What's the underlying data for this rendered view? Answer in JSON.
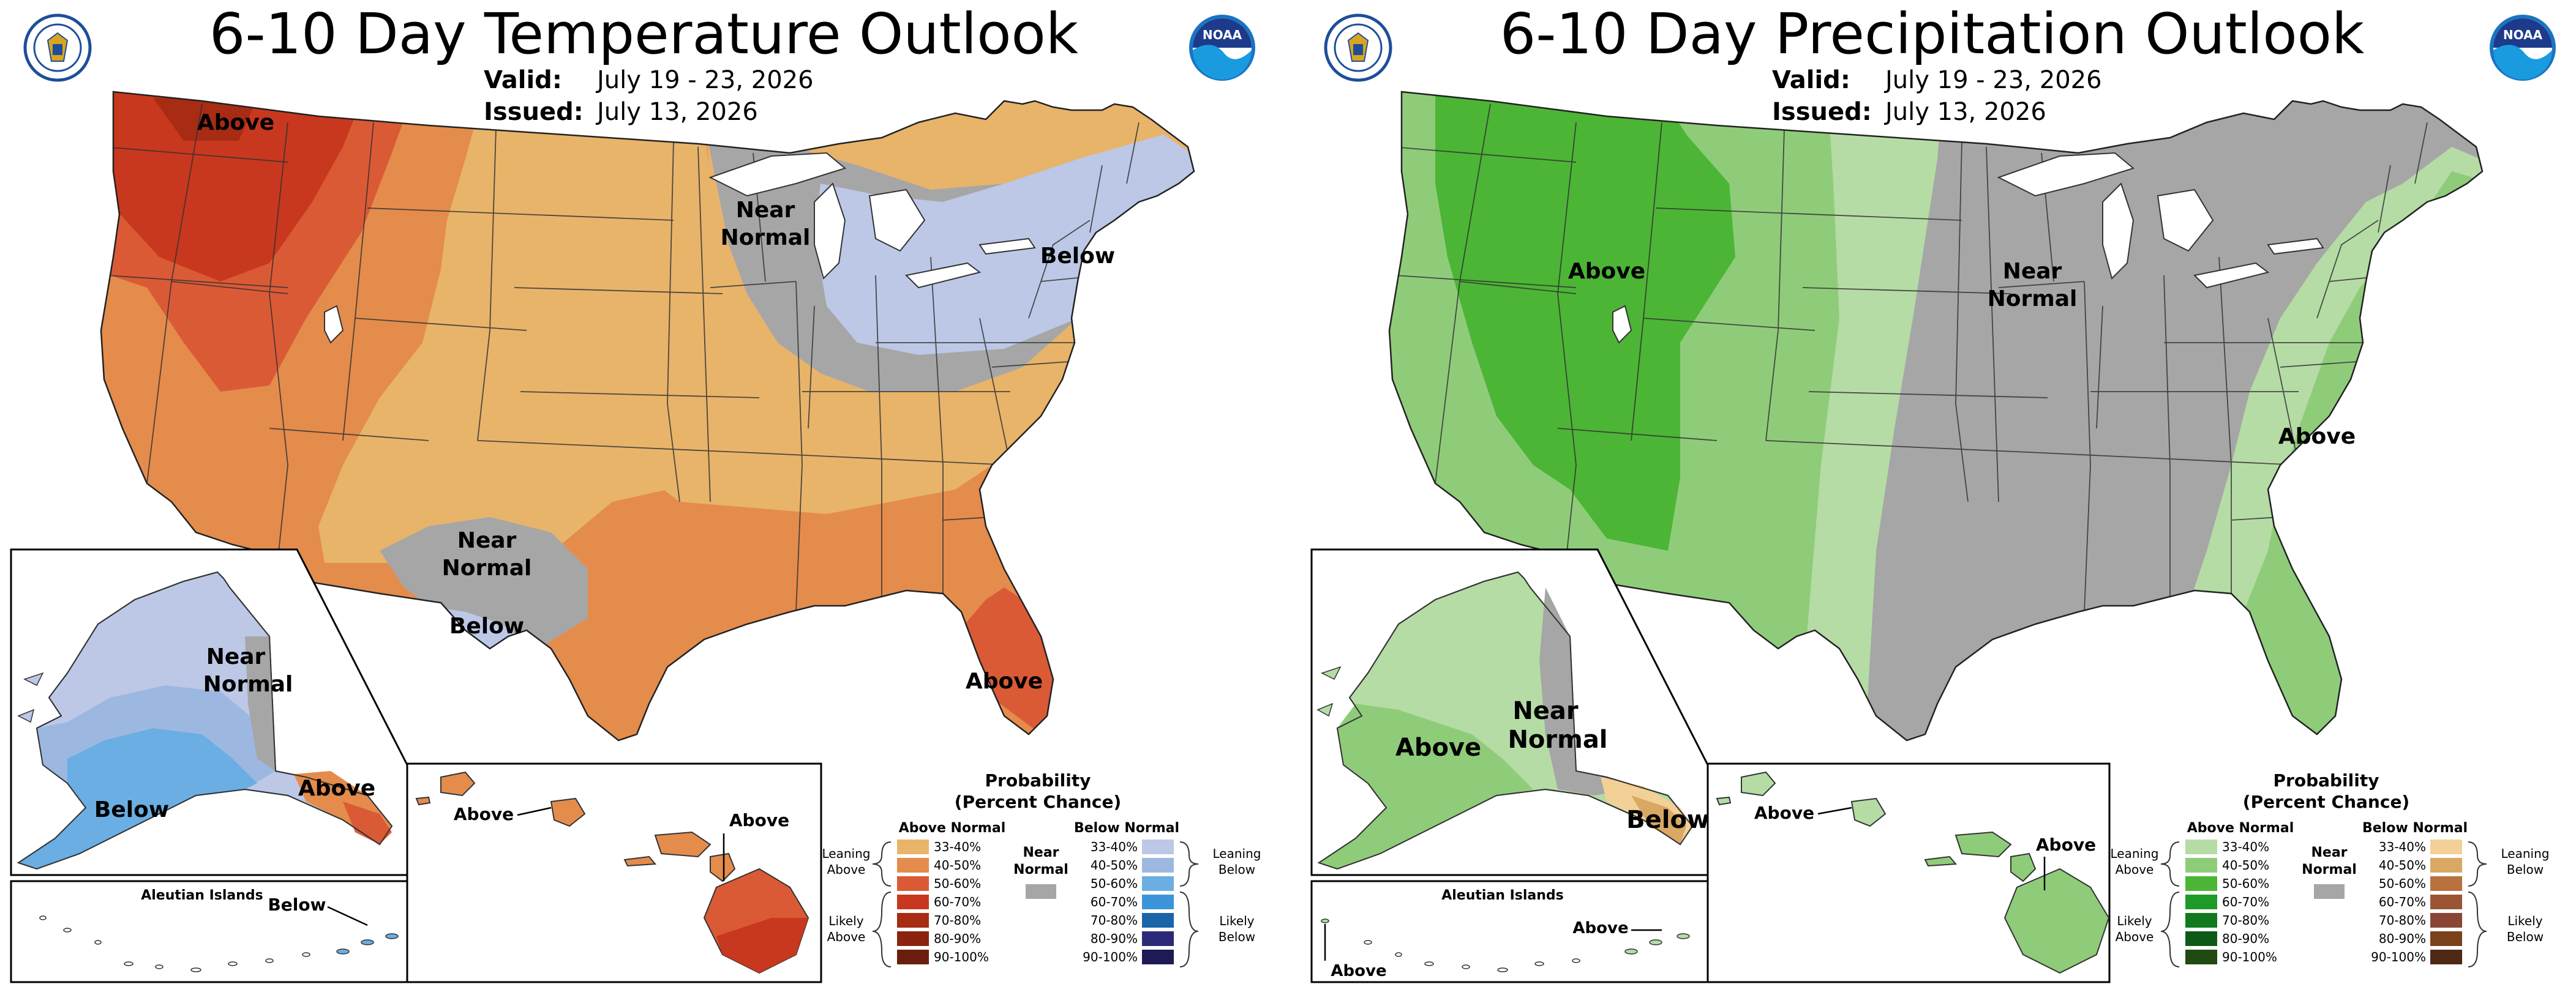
{
  "temperature": {
    "title": "6-10 Day Temperature Outlook",
    "valid_label": "Valid:",
    "valid_value": "July 19 - 23, 2026",
    "issued_label": "Issued:",
    "issued_value": "July 13, 2026",
    "labels": {
      "nw_above": "Above",
      "ne_near1": "Near",
      "ne_near2": "Normal",
      "ne_below": "Below",
      "tx_near1": "Near",
      "tx_near2": "Normal",
      "tx_below": "Below",
      "fl_above": "Above",
      "ak_near1": "Near",
      "ak_near2": "Normal",
      "ak_below": "Below",
      "ak_above": "Above",
      "aleutian_title": "Aleutian Islands",
      "aleutian_below": "Below",
      "hi_above_left": "Above",
      "hi_above_right": "Above"
    },
    "colors": {
      "above_33_40": "#E8B46A",
      "above_40_50": "#E48C4C",
      "above_50_60": "#DB5A36",
      "above_60_70": "#C8381E",
      "above_70_80": "#A82B14",
      "above_80_90": "#8A2410",
      "above_90_100": "#6B1E0D",
      "below_33_40": "#BCC8E6",
      "below_40_50": "#9DB8E0",
      "below_50_60": "#6AAEE3",
      "below_60_70": "#3C95D8",
      "below_70_80": "#1A64A8",
      "below_80_90": "#2B2A78",
      "below_90_100": "#1D1A55",
      "near_normal": "#A6A6A6"
    }
  },
  "precipitation": {
    "title": "6-10 Day Precipitation Outlook",
    "valid_label": "Valid:",
    "valid_value": "July 19 - 23, 2026",
    "issued_label": "Issued:",
    "issued_value": "July 13, 2026",
    "labels": {
      "west_above": "Above",
      "mid_near1": "Near",
      "mid_near2": "Normal",
      "se_above": "Above",
      "ak_above": "Above",
      "ak_near1": "Near",
      "ak_near2": "Normal",
      "ak_below": "Below",
      "aleutian_title": "Aleutian Islands",
      "aleutian_above_left": "Above",
      "aleutian_above_right": "Above",
      "hi_above_left": "Above",
      "hi_above_right": "Above"
    },
    "colors": {
      "above_33_40": "#B5DCA5",
      "above_40_50": "#8FCC7A",
      "above_50_60": "#4CB535",
      "above_60_70": "#1E9A28",
      "above_70_80": "#117A1E",
      "above_80_90": "#0D5A18",
      "above_90_100": "#1F4A12",
      "below_33_40": "#F2D096",
      "below_40_50": "#D9A863",
      "below_50_60": "#B9713E",
      "below_60_70": "#9B5535",
      "below_70_80": "#8A4535",
      "below_80_90": "#7A4218",
      "below_90_100": "#4E2814",
      "near_normal": "#A6A6A6"
    }
  },
  "legend": {
    "heading1": "Probability",
    "heading2": "(Percent Chance)",
    "above_header": "Above Normal",
    "below_header": "Below Normal",
    "near1": "Near",
    "near2": "Normal",
    "leaning1": "Leaning",
    "leaning_above": "Above",
    "leaning_below": "Below",
    "likely1": "Likely",
    "likely_above": "Above",
    "likely_below": "Below",
    "bins": [
      "33-40%",
      "40-50%",
      "50-60%",
      "60-70%",
      "70-80%",
      "80-90%",
      "90-100%"
    ]
  }
}
